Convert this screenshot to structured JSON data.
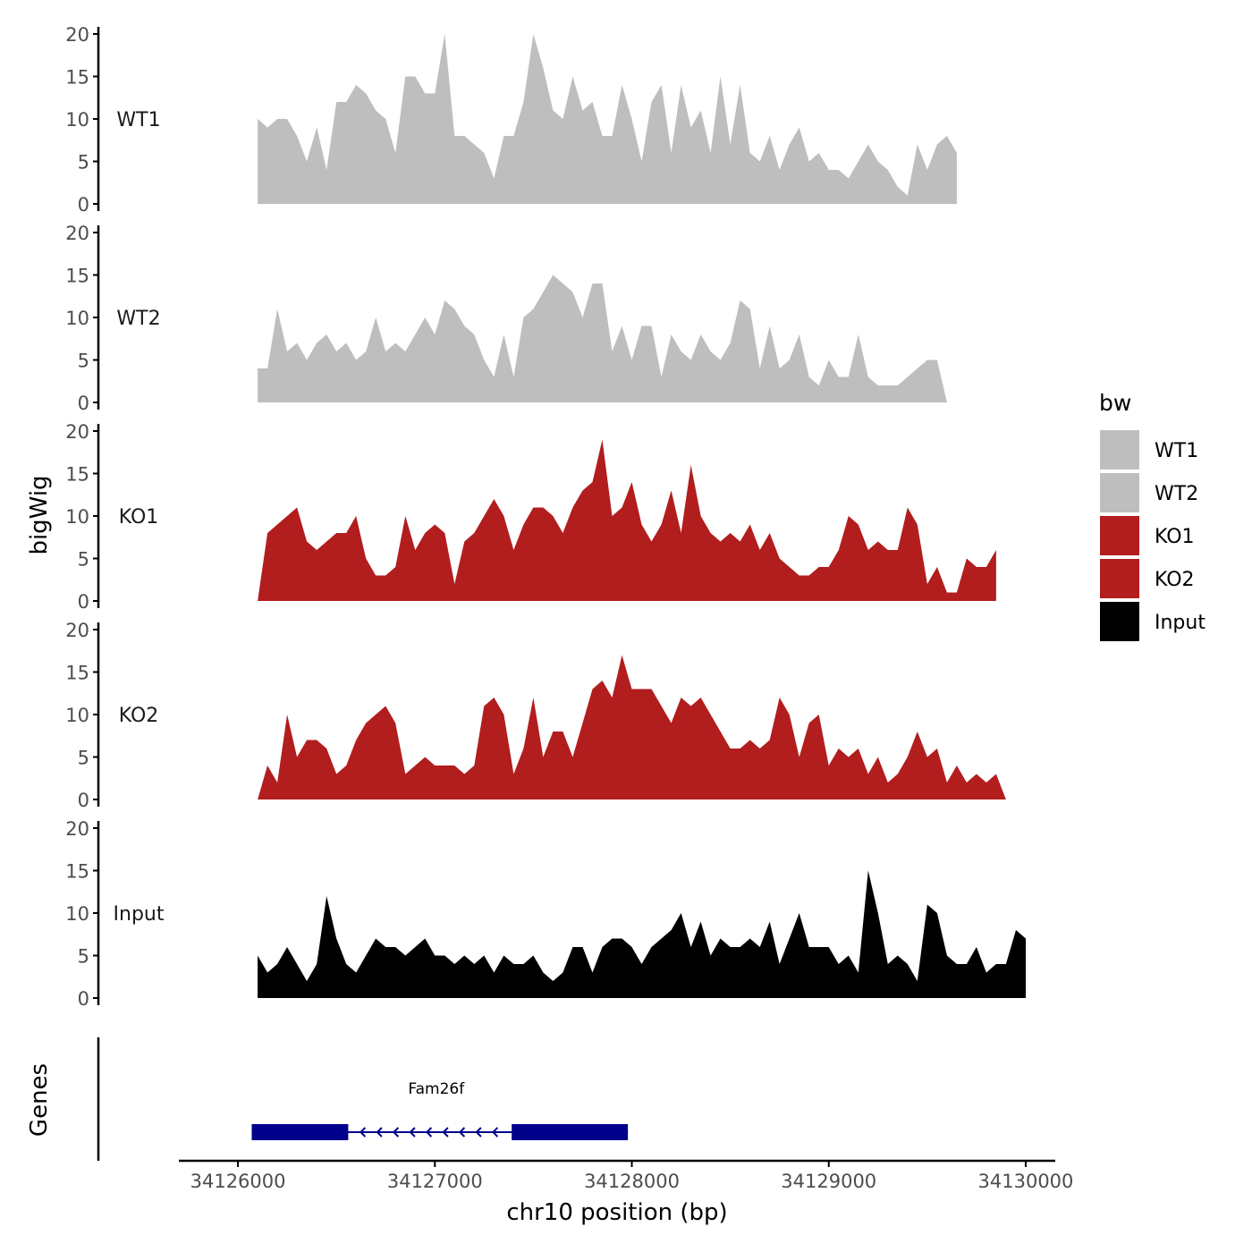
{
  "chart_data": {
    "type": "area",
    "title": "",
    "ylabel": "bigWig",
    "xlabel": "chr10 position (bp)",
    "xlim": [
      34125700,
      34130150
    ],
    "ylim": [
      0,
      20
    ],
    "x_ticks": [
      34126000,
      34127000,
      34128000,
      34129000,
      34130000
    ],
    "x_tick_labels": [
      "34126000",
      "34127000",
      "34128000",
      "34129000",
      "34130000"
    ],
    "y_ticks": [
      0,
      5,
      10,
      15,
      20
    ],
    "y_tick_labels": [
      "0",
      "5",
      "10",
      "15",
      "20"
    ],
    "legend": {
      "title": "bw",
      "position": "right",
      "entries": [
        {
          "label": "WT1",
          "color": "#BEBEBE"
        },
        {
          "label": "WT2",
          "color": "#BEBEBE"
        },
        {
          "label": "KO1",
          "color": "#B21D1E"
        },
        {
          "label": "KO2",
          "color": "#B21D1E"
        },
        {
          "label": "Input",
          "color": "#000000"
        }
      ]
    },
    "grid": false,
    "x_start": 34126100,
    "x_step": 50,
    "series": [
      {
        "name": "WT1",
        "color": "#BEBEBE",
        "values": [
          10,
          9,
          10,
          10,
          8,
          5,
          9,
          4,
          12,
          12,
          14,
          13,
          11,
          10,
          6,
          15,
          15,
          13,
          13,
          20,
          8,
          8,
          7,
          6,
          3,
          8,
          8,
          12,
          20,
          16,
          11,
          10,
          15,
          11,
          12,
          8,
          8,
          14,
          10,
          5,
          12,
          14,
          6,
          14,
          9,
          11,
          6,
          15,
          7,
          14,
          6,
          5,
          8,
          4,
          7,
          9,
          5,
          6,
          4,
          4,
          3,
          5,
          7,
          5,
          4,
          2,
          1,
          7,
          4,
          7,
          8,
          6
        ]
      },
      {
        "name": "WT2",
        "color": "#BEBEBE",
        "values": [
          4,
          4,
          11,
          6,
          7,
          5,
          7,
          8,
          6,
          7,
          5,
          6,
          10,
          6,
          7,
          6,
          8,
          10,
          8,
          12,
          11,
          9,
          8,
          5,
          3,
          8,
          3,
          10,
          11,
          13,
          15,
          14,
          13,
          10,
          14,
          14,
          6,
          9,
          5,
          9,
          9,
          3,
          8,
          6,
          5,
          8,
          6,
          5,
          7,
          12,
          11,
          4,
          9,
          4,
          5,
          8,
          3,
          2,
          5,
          3,
          3,
          8,
          3,
          2,
          2,
          2,
          3,
          4,
          5,
          5,
          0
        ]
      },
      {
        "name": "KO1",
        "color": "#B21D1E",
        "values": [
          0,
          8,
          9,
          10,
          11,
          7,
          6,
          7,
          8,
          8,
          10,
          5,
          3,
          3,
          4,
          10,
          6,
          8,
          9,
          8,
          2,
          7,
          8,
          10,
          12,
          10,
          6,
          9,
          11,
          11,
          10,
          8,
          11,
          13,
          14,
          19,
          10,
          11,
          14,
          9,
          7,
          9,
          13,
          8,
          16,
          10,
          8,
          7,
          8,
          7,
          9,
          6,
          8,
          5,
          4,
          3,
          3,
          4,
          4,
          6,
          10,
          9,
          6,
          7,
          6,
          6,
          11,
          9,
          2,
          4,
          1,
          1,
          5,
          4,
          4,
          6
        ]
      },
      {
        "name": "KO2",
        "color": "#B21D1E",
        "values": [
          0,
          4,
          2,
          10,
          5,
          7,
          7,
          6,
          3,
          4,
          7,
          9,
          10,
          11,
          9,
          3,
          4,
          5,
          4,
          4,
          4,
          3,
          4,
          11,
          12,
          10,
          3,
          6,
          12,
          5,
          8,
          8,
          5,
          9,
          13,
          14,
          12,
          17,
          13,
          13,
          13,
          11,
          9,
          12,
          11,
          12,
          10,
          8,
          6,
          6,
          7,
          6,
          7,
          12,
          10,
          5,
          9,
          10,
          4,
          6,
          5,
          6,
          3,
          5,
          2,
          3,
          5,
          8,
          5,
          6,
          2,
          4,
          2,
          3,
          2,
          3,
          0
        ]
      },
      {
        "name": "Input",
        "color": "#000000",
        "values": [
          5,
          3,
          4,
          6,
          4,
          2,
          4,
          12,
          7,
          4,
          3,
          5,
          7,
          6,
          6,
          5,
          6,
          7,
          5,
          5,
          4,
          5,
          4,
          5,
          3,
          5,
          4,
          4,
          5,
          3,
          2,
          3,
          6,
          6,
          3,
          6,
          7,
          7,
          6,
          4,
          6,
          7,
          8,
          10,
          6,
          9,
          5,
          7,
          6,
          6,
          7,
          6,
          9,
          4,
          7,
          10,
          6,
          6,
          6,
          4,
          5,
          3,
          15,
          10,
          4,
          5,
          4,
          2,
          11,
          10,
          5,
          4,
          4,
          6,
          3,
          4,
          4,
          8,
          7
        ]
      }
    ],
    "genes_panel": {
      "ylabel": "Genes",
      "genes": [
        {
          "name": "Fam26f",
          "strand": "-",
          "start": 34126070,
          "end": 34127980,
          "exons": [
            [
              34126070,
              34126560
            ],
            [
              34127390,
              34127980
            ]
          ],
          "color": "#00008B"
        }
      ]
    }
  }
}
